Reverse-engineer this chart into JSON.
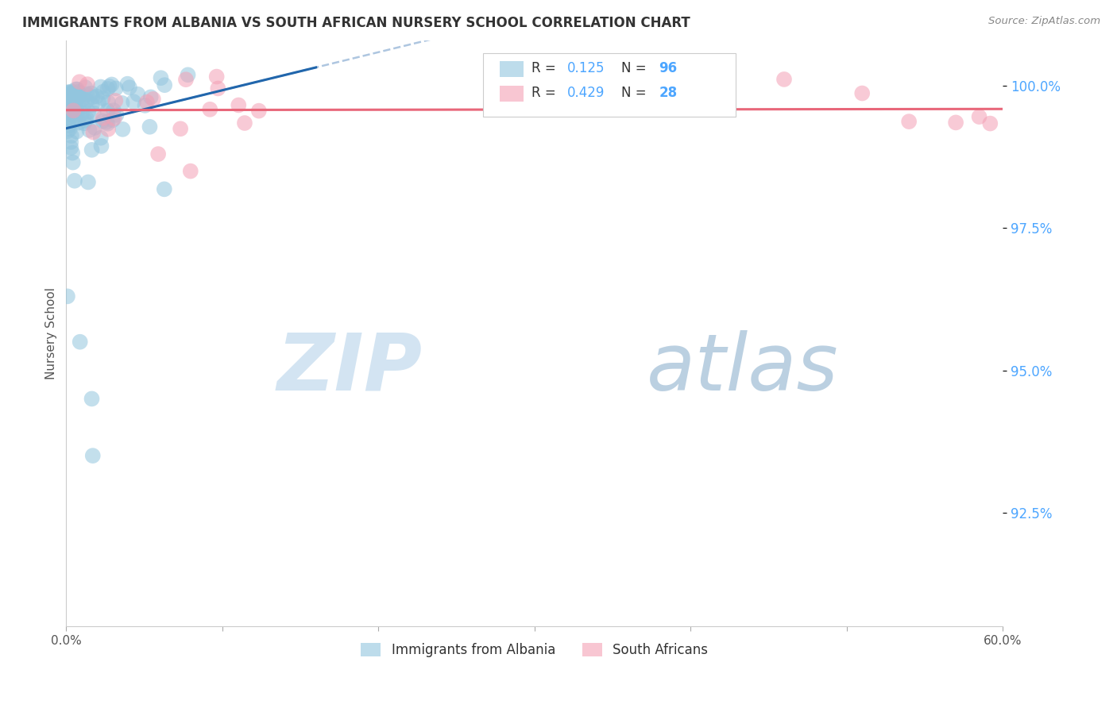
{
  "title": "IMMIGRANTS FROM ALBANIA VS SOUTH AFRICAN NURSERY SCHOOL CORRELATION CHART",
  "source": "Source: ZipAtlas.com",
  "ylabel": "Nursery School",
  "ytick_labels": [
    "100.0%",
    "97.5%",
    "95.0%",
    "92.5%"
  ],
  "ytick_values": [
    1.0,
    0.975,
    0.95,
    0.925
  ],
  "xlim": [
    0.0,
    0.6
  ],
  "ylim": [
    0.905,
    1.008
  ],
  "legend_label1": "Immigrants from Albania",
  "legend_label2": "South Africans",
  "albania_R": 0.125,
  "albania_N": 96,
  "sa_R": 0.429,
  "sa_N": 28,
  "blue_color": "#92c5de",
  "pink_color": "#f4a0b5",
  "blue_line_color": "#2166ac",
  "pink_line_color": "#e8677a",
  "dashed_line_color": "#aec6e0",
  "watermark_zip_color": "#cde0f0",
  "watermark_atlas_color": "#b8c8d8",
  "background_color": "#ffffff",
  "grid_color": "#cccccc",
  "title_color": "#333333",
  "ytick_color": "#4da6ff",
  "xtick_color": "#555555",
  "seed": 42
}
